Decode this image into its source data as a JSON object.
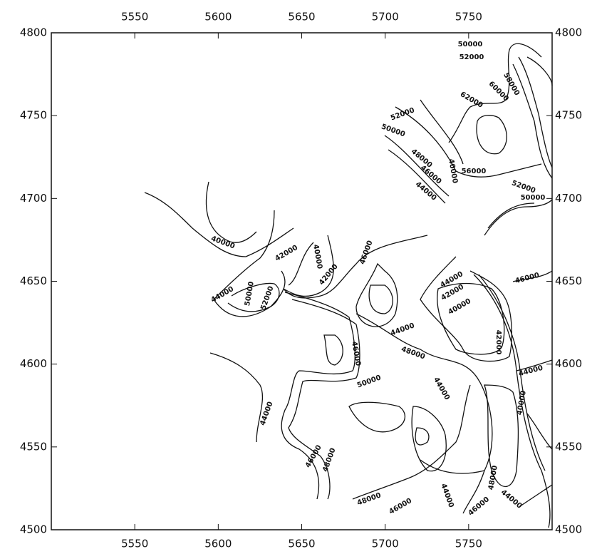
{
  "chart_data": {
    "type": "contour",
    "xlim": [
      5500,
      5800
    ],
    "ylim": [
      4500,
      4800
    ],
    "xticks": [
      5550,
      5600,
      5650,
      5700,
      5750
    ],
    "yticks": [
      4500,
      4550,
      4600,
      4650,
      4700,
      4750,
      4800
    ],
    "contour_labels": [
      50000,
      52000,
      58000,
      60000,
      62000,
      52000,
      50000,
      40000,
      56000,
      48000,
      46000,
      44000,
      52000,
      50000,
      40000,
      42000,
      40000,
      46000,
      42000,
      44000,
      50000,
      52000,
      44000,
      42000,
      40000,
      46000,
      44000,
      42000,
      46000,
      48000,
      50000,
      44000,
      44000,
      40000,
      44000,
      46000,
      48000,
      48000,
      46000,
      48000,
      46000,
      44000,
      44000
    ]
  }
}
